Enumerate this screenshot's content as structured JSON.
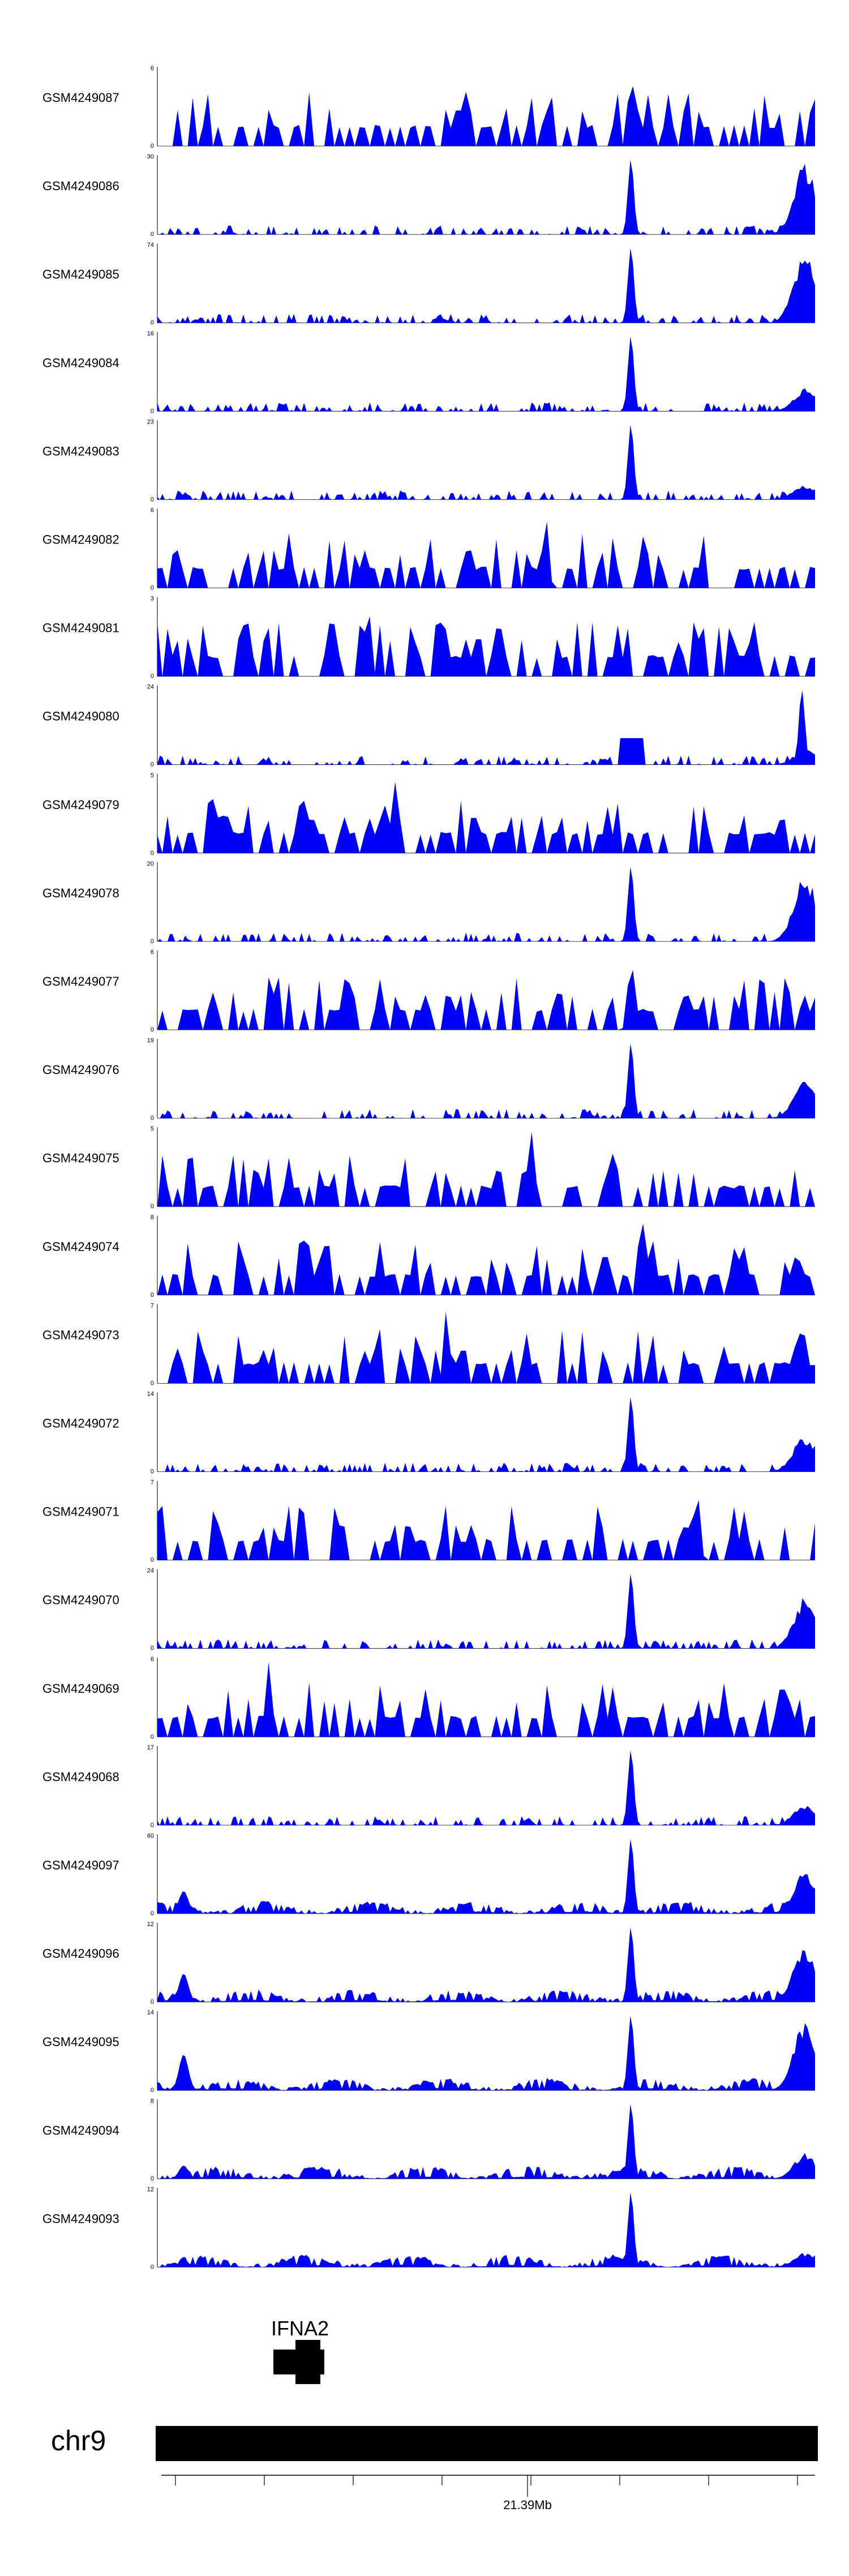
{
  "chart_data": {
    "type": "area",
    "chromosome": "chr9",
    "gene": "IFNA2",
    "axis_tick_label": "21.39Mb",
    "fill_color": "#0000ff",
    "tracks": [
      {
        "label": "GSM4249087",
        "max": "6",
        "min": "0",
        "peak_pos": 0.72,
        "noise": "discrete"
      },
      {
        "label": "GSM4249086",
        "max": "30",
        "min": "0",
        "peak_pos": 0.72,
        "noise": "low",
        "right_peak": 0.95
      },
      {
        "label": "GSM4249085",
        "max": "74",
        "min": "0",
        "peak_pos": 0.72,
        "noise": "low",
        "right_peak": 0.95
      },
      {
        "label": "GSM4249084",
        "max": "16",
        "min": "0",
        "peak_pos": 0.72,
        "noise": "low",
        "right_peak": 0.3
      },
      {
        "label": "GSM4249083",
        "max": "23",
        "min": "0",
        "peak_pos": 0.72,
        "noise": "low"
      },
      {
        "label": "GSM4249082",
        "max": "6",
        "min": "0",
        "peak_pos": 0.59,
        "noise": "discrete"
      },
      {
        "label": "GSM4249081",
        "max": "3",
        "min": "0",
        "peak_pos": 0.32,
        "noise": "discrete"
      },
      {
        "label": "GSM4249080",
        "max": "24",
        "min": "0",
        "peak_pos": 0.98,
        "noise": "low",
        "left_peak": 0.35
      },
      {
        "label": "GSM4249079",
        "max": "5",
        "min": "0",
        "peak_pos": 0.36,
        "noise": "discrete"
      },
      {
        "label": "GSM4249078",
        "max": "20",
        "min": "0",
        "peak_pos": 0.72,
        "noise": "low",
        "right_peak": 0.9
      },
      {
        "label": "GSM4249077",
        "max": "6",
        "min": "0",
        "peak_pos": 0.72,
        "noise": "discrete"
      },
      {
        "label": "GSM4249076",
        "max": "19",
        "min": "0",
        "peak_pos": 0.72,
        "noise": "low",
        "right_peak": 0.55
      },
      {
        "label": "GSM4249075",
        "max": "5",
        "min": "0",
        "peak_pos": 0.57,
        "noise": "discrete"
      },
      {
        "label": "GSM4249074",
        "max": "8",
        "min": "0",
        "peak_pos": 0.74,
        "noise": "discrete"
      },
      {
        "label": "GSM4249073",
        "max": "7",
        "min": "0",
        "peak_pos": 0.44,
        "noise": "discrete"
      },
      {
        "label": "GSM4249072",
        "max": "14",
        "min": "0",
        "peak_pos": 0.72,
        "noise": "low",
        "right_peak": 0.5
      },
      {
        "label": "GSM4249071",
        "max": "7",
        "min": "0",
        "peak_pos": 0.82,
        "noise": "discrete"
      },
      {
        "label": "GSM4249070",
        "max": "24",
        "min": "0",
        "peak_pos": 0.72,
        "noise": "low",
        "right_peak": 0.7
      },
      {
        "label": "GSM4249069",
        "max": "6",
        "min": "0",
        "peak_pos": 0.17,
        "noise": "discrete"
      },
      {
        "label": "GSM4249068",
        "max": "17",
        "min": "0",
        "peak_pos": 0.72,
        "noise": "low",
        "right_peak": 0.3
      },
      {
        "label": "GSM4249097",
        "max": "60",
        "min": "0",
        "peak_pos": 0.72,
        "noise": "smooth",
        "right_peak": 0.6
      },
      {
        "label": "GSM4249096",
        "max": "12",
        "min": "0",
        "peak_pos": 0.72,
        "noise": "smooth",
        "right_peak": 0.75
      },
      {
        "label": "GSM4249095",
        "max": "14",
        "min": "0",
        "peak_pos": 0.72,
        "noise": "smooth",
        "right_peak": 0.95
      },
      {
        "label": "GSM4249094",
        "max": "8",
        "min": "0",
        "peak_pos": 0.72,
        "noise": "smooth",
        "right_peak": 0.35
      },
      {
        "label": "GSM4249093",
        "max": "12",
        "min": "0",
        "peak_pos": 0.72,
        "noise": "smooth",
        "right_peak": 0.2
      }
    ]
  }
}
